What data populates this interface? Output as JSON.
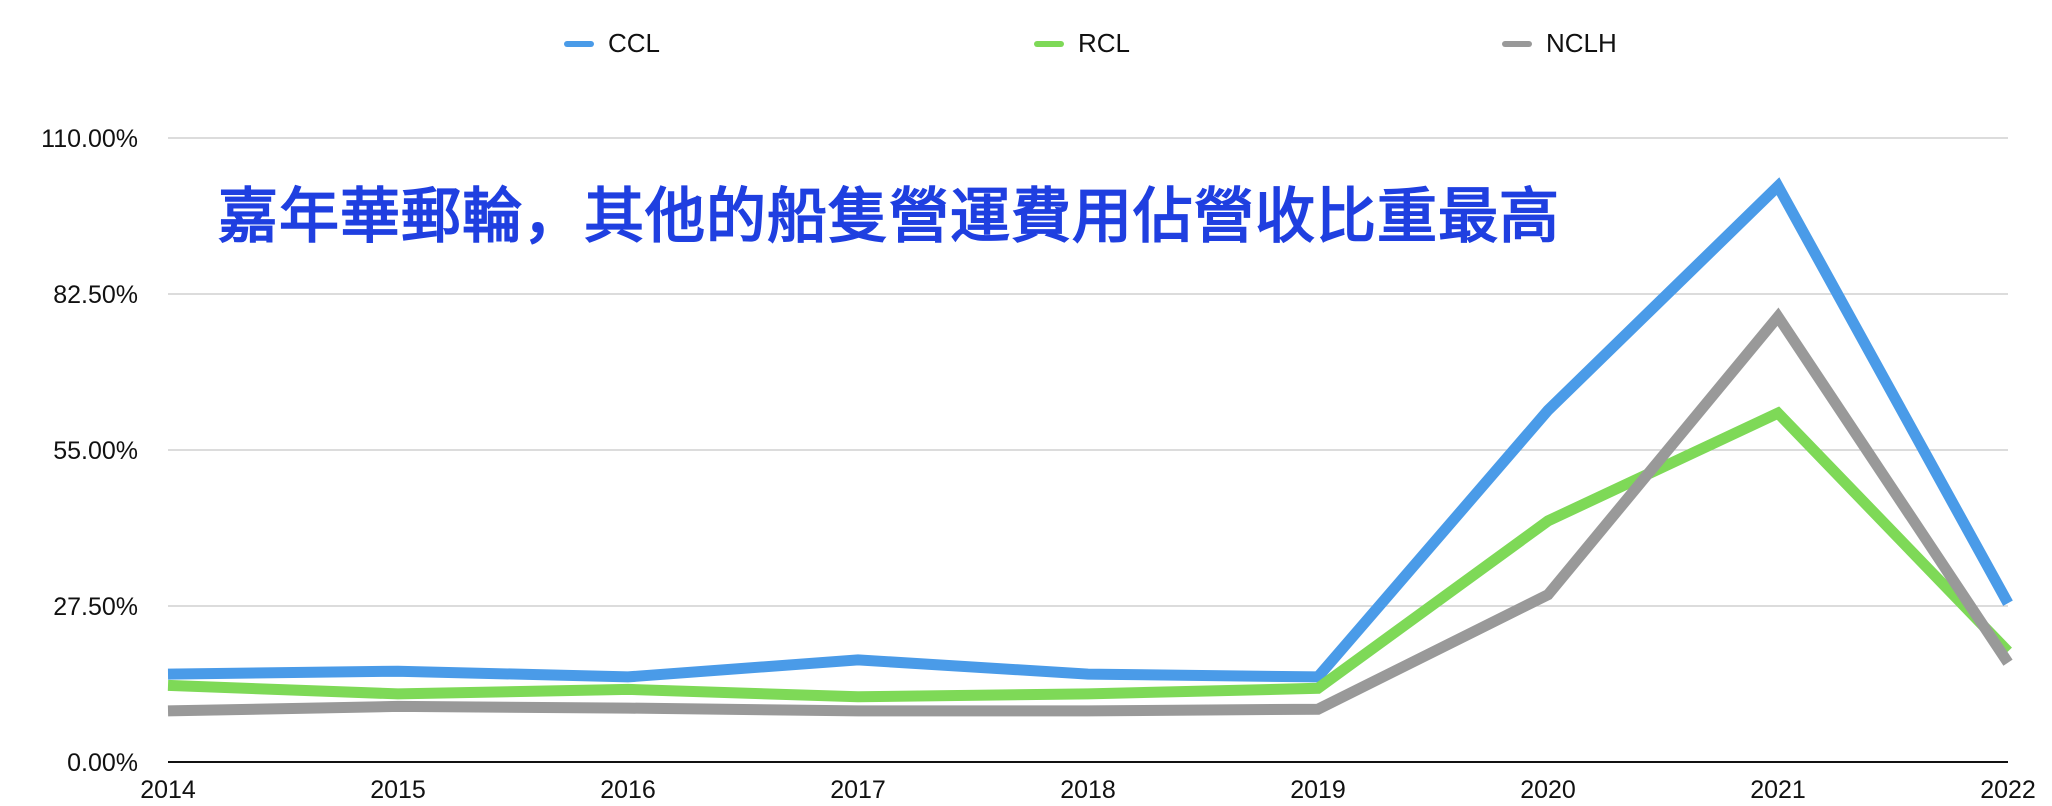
{
  "chart_data": {
    "type": "line",
    "title": "嘉年華郵輪，其他的船隻營運費用佔營收比重最高",
    "xlabel": "",
    "ylabel": "",
    "x": [
      "2014",
      "2015",
      "2016",
      "2017",
      "2018",
      "2019",
      "2020",
      "2021",
      "2022"
    ],
    "ylim": [
      0,
      110
    ],
    "yticks": [
      0,
      27.5,
      55,
      82.5,
      110
    ],
    "ytick_labels": [
      "0.00%",
      "27.50%",
      "55.00%",
      "82.50%",
      "110.00%"
    ],
    "grid": true,
    "legend_position": "top",
    "series": [
      {
        "name": "CCL",
        "color": "#4a9be8",
        "values": [
          15.5,
          16.0,
          15.0,
          18.0,
          15.5,
          15.0,
          62.0,
          101.5,
          28.0
        ]
      },
      {
        "name": "RCL",
        "color": "#7ed957",
        "values": [
          13.5,
          12.0,
          12.8,
          11.5,
          12.0,
          13.0,
          42.5,
          61.5,
          19.5
        ]
      },
      {
        "name": "NCLH",
        "color": "#999999",
        "values": [
          9.0,
          9.8,
          9.5,
          9.0,
          9.0,
          9.3,
          29.5,
          78.5,
          17.5
        ]
      }
    ]
  }
}
